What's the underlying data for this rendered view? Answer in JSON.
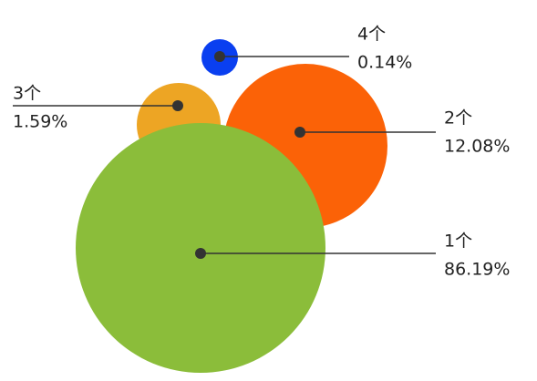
{
  "chart_data": {
    "type": "bubble",
    "categories": [
      "1个",
      "2个",
      "3个",
      "4个"
    ],
    "values": [
      86.19,
      12.08,
      1.59,
      0.14
    ],
    "value_labels": [
      "86.19%",
      "12.08%",
      "1.59%",
      "0.14%"
    ],
    "colors": [
      "#8bbd3a",
      "#fb6207",
      "#eda524",
      "#0a3ff0"
    ]
  }
}
